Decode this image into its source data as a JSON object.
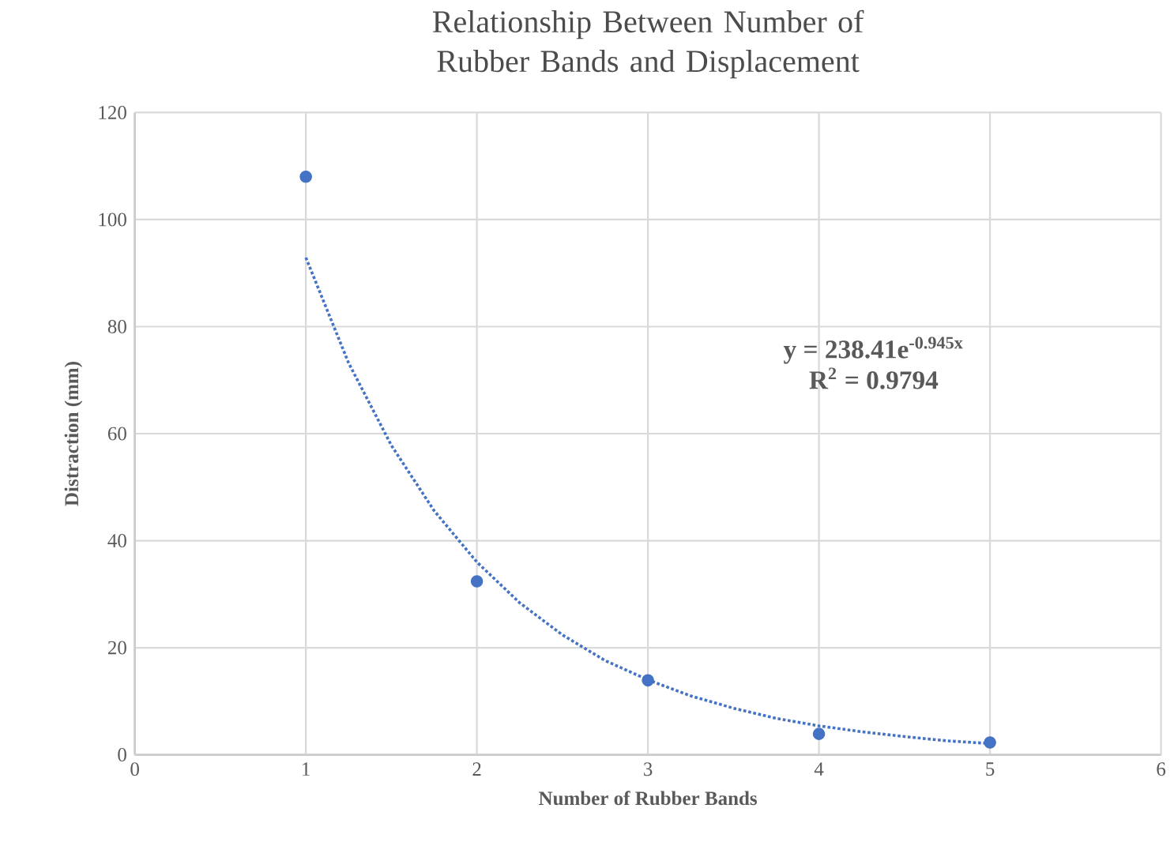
{
  "chart_data": {
    "type": "scatter",
    "title": "Relationship Between Number of Rubber Bands and Displacement",
    "xlabel": "Number of Rubber Bands",
    "ylabel": "Distraction (mm)",
    "series": [
      {
        "color": "#4472c4",
        "x": [
          1,
          2,
          3,
          4,
          5
        ],
        "values": [
          108,
          32.4,
          13.9,
          3.9,
          2.3
        ],
        "marker": "circle"
      },
      {
        "type": "line",
        "color": "#4472c4",
        "line_style": "dotted",
        "marker": "none",
        "x": [
          1,
          1.25,
          1.5,
          1.75,
          2,
          2.25,
          2.5,
          2.75,
          3,
          3.25,
          3.5,
          3.75,
          4,
          4.25,
          4.5,
          4.75,
          5
        ],
        "values": [
          92.9,
          73.2,
          57.8,
          45.6,
          36.0,
          28.4,
          22.4,
          17.6,
          14.0,
          11.0,
          8.7,
          6.8,
          5.4,
          4.3,
          3.4,
          2.6,
          2.1
        ]
      }
    ],
    "annotations": [
      "y = 238.41e$^{-0.945x}$",
      "R$^{2}$ = 0.9794"
    ],
    "xlim": [
      0,
      6
    ],
    "xticks": [
      0,
      1,
      2,
      3,
      4,
      5,
      6
    ],
    "ylim": [
      0,
      120
    ],
    "yticks": [
      0,
      20,
      40,
      60,
      80,
      100,
      120
    ],
    "grid": true
  }
}
